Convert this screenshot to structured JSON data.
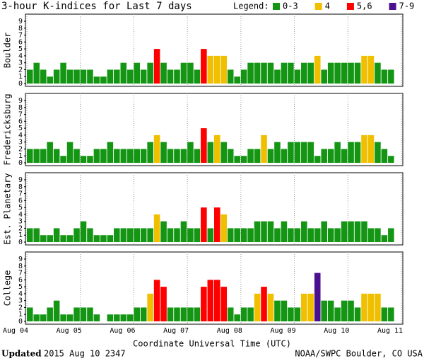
{
  "chart_data": {
    "type": "bar",
    "title": "3-hour K-indices for Last 7 days",
    "legend_title": "Legend:",
    "legend": [
      {
        "label": "0-3",
        "color": "#149614"
      },
      {
        "label": "4",
        "color": "#f0c000"
      },
      {
        "label": "5,6",
        "color": "#ff0000"
      },
      {
        "label": "7-9",
        "color": "#4b1090"
      }
    ],
    "xticks": [
      "Aug 04",
      "Aug 05",
      "Aug 06",
      "Aug 07",
      "Aug 08",
      "Aug 09",
      "Aug 10",
      "Aug 11"
    ],
    "xlabel": "Coordinate Universal Time (UTC)",
    "ylim": [
      0,
      9
    ],
    "yticks": [
      0,
      1,
      2,
      3,
      4,
      5,
      6,
      7,
      8,
      9
    ],
    "series": [
      {
        "name": "Boulder",
        "values": [
          2,
          3,
          2,
          1,
          2,
          3,
          2,
          2,
          2,
          2,
          1,
          1,
          2,
          2,
          3,
          2,
          3,
          2,
          3,
          5,
          3,
          2,
          2,
          3,
          3,
          2,
          5,
          4,
          4,
          4,
          2,
          1,
          2,
          3,
          3,
          3,
          3,
          2,
          3,
          3,
          2,
          3,
          3,
          4,
          2,
          3,
          3,
          3,
          3,
          3,
          4,
          4,
          3,
          2,
          2,
          0
        ]
      },
      {
        "name": "Fredericksburg",
        "values": [
          2,
          2,
          2,
          3,
          2,
          1,
          3,
          2,
          1,
          1,
          2,
          2,
          3,
          2,
          2,
          2,
          2,
          2,
          3,
          4,
          3,
          2,
          2,
          2,
          3,
          2,
          5,
          3,
          4,
          3,
          2,
          1,
          1,
          2,
          2,
          4,
          2,
          3,
          2,
          3,
          3,
          3,
          3,
          1,
          2,
          2,
          3,
          2,
          3,
          3,
          4,
          4,
          3,
          2,
          1,
          0
        ]
      },
      {
        "name": "Est. Planetary",
        "values": [
          2,
          2,
          1,
          1,
          2,
          1,
          1,
          2,
          3,
          2,
          1,
          1,
          1,
          2,
          2,
          2,
          2,
          2,
          2,
          4,
          3,
          2,
          2,
          3,
          2,
          2,
          5,
          2,
          5,
          4,
          2,
          2,
          2,
          2,
          3,
          3,
          3,
          2,
          3,
          2,
          2,
          3,
          2,
          2,
          3,
          2,
          2,
          3,
          3,
          3,
          3,
          2,
          2,
          1,
          2,
          0
        ]
      },
      {
        "name": "College",
        "values": [
          2,
          1,
          1,
          2,
          3,
          1,
          1,
          2,
          2,
          2,
          1,
          0,
          1,
          1,
          1,
          1,
          2,
          2,
          4,
          6,
          5,
          2,
          2,
          2,
          2,
          2,
          5,
          6,
          6,
          5,
          2,
          1,
          2,
          2,
          4,
          5,
          4,
          3,
          3,
          2,
          2,
          4,
          4,
          7,
          3,
          3,
          2,
          3,
          3,
          2,
          4,
          4,
          4,
          2,
          2,
          0
        ]
      }
    ],
    "updated_label": "Updated",
    "updated": "2015 Aug 10 2347",
    "source": "NOAA/SWPC Boulder, CO USA"
  }
}
